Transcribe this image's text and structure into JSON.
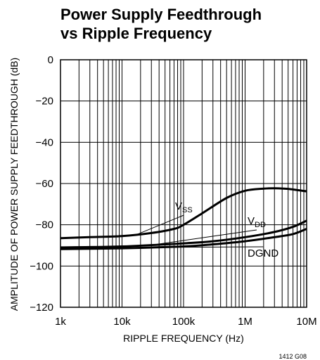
{
  "chart_data": {
    "type": "line",
    "title_lines": [
      "Power Supply Feedthrough",
      "vs Ripple Frequency"
    ],
    "xlabel": "RIPPLE FREQUENCY (Hz)",
    "ylabel": "AMPLITUDE OF POWER SUPPLY FEEDTHROUGH (dB)",
    "x_scale": "log",
    "xlim": [
      1000,
      10000000
    ],
    "ylim": [
      -120,
      0
    ],
    "x_ticks": [
      {
        "value": 1000,
        "label": "1k"
      },
      {
        "value": 10000,
        "label": "10k"
      },
      {
        "value": 100000,
        "label": "100k"
      },
      {
        "value": 1000000,
        "label": "1M"
      },
      {
        "value": 10000000,
        "label": "10M"
      }
    ],
    "y_ticks": [
      {
        "value": 0,
        "label": "0"
      },
      {
        "value": -20,
        "label": "−20"
      },
      {
        "value": -40,
        "label": "−40"
      },
      {
        "value": -60,
        "label": "−60"
      },
      {
        "value": -80,
        "label": "−80"
      },
      {
        "value": -100,
        "label": "−100"
      },
      {
        "value": -120,
        "label": "−120"
      }
    ],
    "grid": true,
    "series": [
      {
        "name": "VSS",
        "label_main": "V",
        "label_sub": "SS",
        "points": [
          [
            1000,
            -86.5
          ],
          [
            3000,
            -86
          ],
          [
            10000,
            -85.5
          ],
          [
            30000,
            -84
          ],
          [
            70000,
            -82
          ],
          [
            100000,
            -80
          ],
          [
            200000,
            -74.5
          ],
          [
            500000,
            -67
          ],
          [
            1000000,
            -63.5
          ],
          [
            2000000,
            -62.5
          ],
          [
            3000000,
            -62.3
          ],
          [
            5000000,
            -62.6
          ],
          [
            10000000,
            -63.8
          ]
        ]
      },
      {
        "name": "VDD",
        "label_main": "V",
        "label_sub": "DD",
        "points": [
          [
            1000,
            -91
          ],
          [
            10000,
            -90.5
          ],
          [
            100000,
            -89
          ],
          [
            300000,
            -88
          ],
          [
            1000000,
            -86
          ],
          [
            3000000,
            -83.5
          ],
          [
            6000000,
            -81
          ],
          [
            10000000,
            -78
          ]
        ]
      },
      {
        "name": "DGND",
        "label_main": "DGND",
        "label_sub": "",
        "points": [
          [
            1000,
            -91.8
          ],
          [
            10000,
            -91.4
          ],
          [
            100000,
            -90.5
          ],
          [
            300000,
            -89.5
          ],
          [
            1000000,
            -88
          ],
          [
            3000000,
            -86
          ],
          [
            6000000,
            -84.5
          ],
          [
            10000000,
            -82
          ]
        ]
      }
    ],
    "footnote": "1412 G08"
  }
}
